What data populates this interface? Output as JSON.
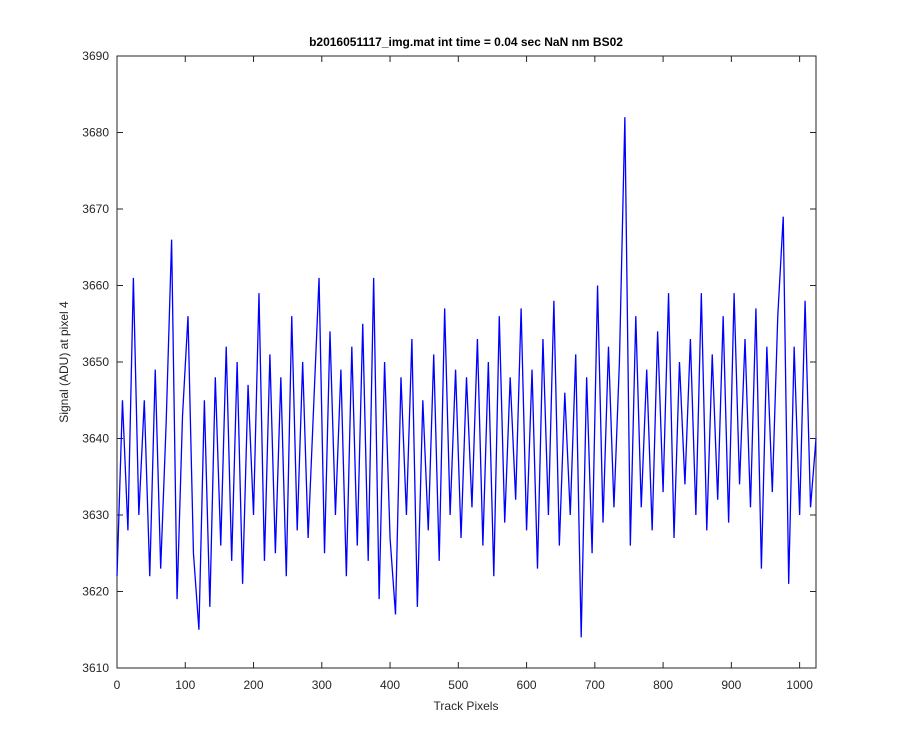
{
  "chart_data": {
    "type": "line",
    "title": "b2016051117_img.mat int time = 0.04 sec  NaN nm BS02",
    "xlabel": "Track Pixels",
    "ylabel": "Signal (ADU) at pixel 4",
    "xlim": [
      0,
      1024
    ],
    "ylim": [
      3610,
      3690
    ],
    "xticks": [
      0,
      100,
      200,
      300,
      400,
      500,
      600,
      700,
      800,
      900,
      1000
    ],
    "yticks": [
      3610,
      3620,
      3630,
      3640,
      3650,
      3660,
      3670,
      3680,
      3690
    ],
    "grid": false,
    "x": [
      0,
      8,
      16,
      24,
      32,
      40,
      48,
      56,
      64,
      72,
      80,
      88,
      96,
      104,
      112,
      120,
      128,
      136,
      144,
      152,
      160,
      168,
      176,
      184,
      192,
      200,
      208,
      216,
      224,
      232,
      240,
      248,
      256,
      264,
      272,
      280,
      288,
      296,
      304,
      312,
      320,
      328,
      336,
      344,
      352,
      360,
      368,
      376,
      384,
      392,
      400,
      408,
      416,
      424,
      432,
      440,
      448,
      456,
      464,
      472,
      480,
      488,
      496,
      504,
      512,
      520,
      528,
      536,
      544,
      552,
      560,
      568,
      576,
      584,
      592,
      600,
      608,
      616,
      624,
      632,
      640,
      648,
      656,
      664,
      672,
      680,
      688,
      696,
      704,
      712,
      720,
      728,
      736,
      744,
      752,
      760,
      768,
      776,
      784,
      792,
      800,
      808,
      816,
      824,
      832,
      840,
      848,
      856,
      864,
      872,
      880,
      888,
      896,
      904,
      912,
      920,
      928,
      936,
      944,
      952,
      960,
      968,
      976,
      984,
      992,
      1000,
      1008,
      1016,
      1024
    ],
    "series": [
      {
        "name": "signal",
        "color": "#0000ff",
        "values": [
          3622,
          3645,
          3628,
          3661,
          3630,
          3645,
          3622,
          3649,
          3623,
          3642,
          3666,
          3619,
          3643,
          3656,
          3625,
          3615,
          3645,
          3618,
          3648,
          3626,
          3652,
          3624,
          3650,
          3621,
          3647,
          3630,
          3659,
          3624,
          3651,
          3625,
          3648,
          3622,
          3656,
          3628,
          3650,
          3627,
          3644,
          3661,
          3625,
          3654,
          3630,
          3649,
          3622,
          3652,
          3626,
          3655,
          3624,
          3661,
          3619,
          3650,
          3627,
          3617,
          3648,
          3630,
          3653,
          3618,
          3645,
          3628,
          3651,
          3624,
          3657,
          3630,
          3649,
          3627,
          3648,
          3631,
          3653,
          3626,
          3650,
          3622,
          3656,
          3629,
          3648,
          3632,
          3657,
          3628,
          3649,
          3623,
          3653,
          3630,
          3658,
          3626,
          3646,
          3630,
          3651,
          3614,
          3648,
          3625,
          3660,
          3629,
          3652,
          3631,
          3650,
          3682,
          3626,
          3656,
          3631,
          3649,
          3628,
          3654,
          3633,
          3659,
          3627,
          3650,
          3634,
          3653,
          3630,
          3659,
          3628,
          3651,
          3632,
          3656,
          3629,
          3659,
          3634,
          3653,
          3631,
          3657,
          3623,
          3652,
          3633,
          3656,
          3669,
          3621,
          3652,
          3630,
          3658,
          3631,
          3640
        ]
      }
    ]
  }
}
